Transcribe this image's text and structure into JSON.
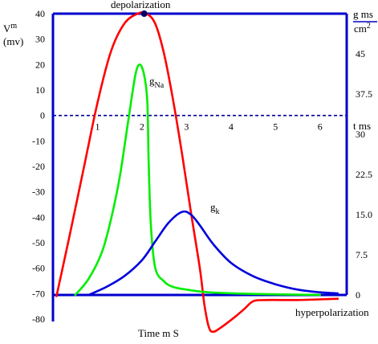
{
  "chart_data": {
    "type": "line",
    "annotations": {
      "top": "depolarization",
      "bottom": "hyperpolarization",
      "gna_main": "g",
      "gna_sub": "Na",
      "gk_main": "g",
      "gk_sub": "k"
    },
    "axes": {
      "left_label_main": "V",
      "left_label_sup": "m",
      "left_label_unit": "(mv)",
      "right_label_top": "g ms",
      "right_label_bottom": "cm",
      "right_label_sup": "2",
      "xlabel": "Time m S",
      "t_label": "t ms"
    },
    "y_left_ticks": [
      "40",
      "30",
      "20",
      "10",
      "0",
      "-10",
      "-20",
      "-30",
      "-40",
      "-50",
      "-60",
      "-70",
      "-80"
    ],
    "y_right_ticks": [
      "45",
      "37.5",
      "30",
      "22.5",
      "15.0",
      "7.5",
      "0"
    ],
    "x_ticks": [
      "1",
      "2",
      "3",
      "4",
      "5",
      "6"
    ],
    "xlim": [
      0,
      6.6
    ],
    "ylim_left": [
      -80,
      40
    ],
    "ylim_right": [
      0,
      52.5
    ],
    "grid": false,
    "colors": {
      "axes": "#0000cc",
      "vm": "#ff0000",
      "gna": "#00ee00",
      "gk": "#0000dd",
      "zero_line": "#000099"
    },
    "series": [
      {
        "name": "Vm",
        "axis": "left",
        "x": [
          0.08,
          0.4,
          0.7,
          1.0,
          1.3,
          1.6,
          1.9,
          2.1,
          2.3,
          2.5,
          2.7,
          2.9,
          3.1,
          3.3,
          3.4,
          3.5,
          3.6,
          3.8,
          4.1,
          4.3,
          4.5,
          4.8,
          5.5,
          6.4
        ],
        "y": [
          -71,
          -45,
          -20,
          5,
          25,
          36,
          40,
          40,
          36,
          24,
          6,
          -15,
          -38,
          -60,
          -74,
          -83,
          -85,
          -83,
          -79,
          -76,
          -73,
          -72.5,
          -72.5,
          -72
        ]
      },
      {
        "name": "gNa",
        "axis": "right",
        "x": [
          0.5,
          0.8,
          1.1,
          1.3,
          1.5,
          1.7,
          1.85,
          1.95,
          2.05,
          2.12,
          2.15,
          2.2,
          2.3,
          2.5,
          2.7,
          3.0,
          3.5,
          4.5,
          6.0
        ],
        "y": [
          0,
          3,
          8,
          14,
          22,
          33,
          41,
          43,
          41,
          36,
          25,
          13,
          5,
          2.5,
          1.5,
          1.0,
          0.5,
          0.2,
          0
        ]
      },
      {
        "name": "gk",
        "axis": "right",
        "x": [
          0.8,
          1.2,
          1.6,
          2.0,
          2.3,
          2.6,
          2.9,
          3.1,
          3.3,
          3.6,
          4.0,
          4.5,
          5.0,
          5.5,
          6.0,
          6.4
        ],
        "y": [
          0,
          1.5,
          3.5,
          6.5,
          10,
          13.5,
          15.5,
          15.0,
          13.0,
          9.5,
          6.0,
          3.5,
          2.0,
          1.0,
          0.5,
          0.3
        ]
      }
    ],
    "markers": [
      {
        "series": "Vm",
        "x": 2.05,
        "y": 40
      }
    ]
  }
}
